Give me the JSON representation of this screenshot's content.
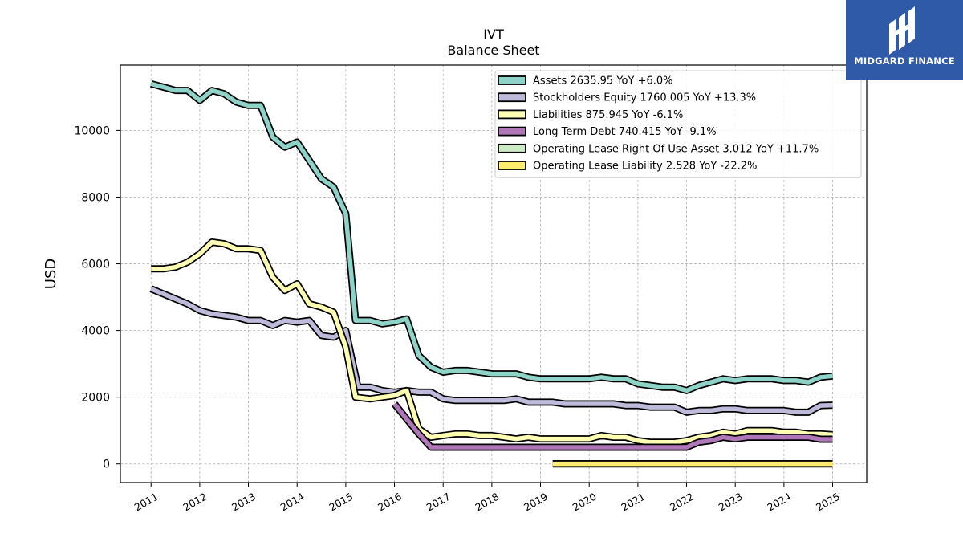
{
  "brand": {
    "name": "MIDGARD FINANCE",
    "color": "#2f5aa8"
  },
  "chart_data": {
    "type": "line",
    "title": "IVT",
    "subtitle": "Balance  Sheet",
    "xlabel": "",
    "ylabel": "USD",
    "xlim": [
      2010.37,
      2025.7
    ],
    "ylim": [
      -560,
      11960
    ],
    "xticks": [
      "2011",
      "2012",
      "2013",
      "2014",
      "2015",
      "2016",
      "2017",
      "2018",
      "2019",
      "2020",
      "2021",
      "2022",
      "2023",
      "2024",
      "2025"
    ],
    "yticks": [
      0,
      2000,
      4000,
      6000,
      8000,
      10000
    ],
    "grid": true,
    "legend_position": "top-right",
    "series": [
      {
        "name": "Assets  2635.95 YoY +6.0%",
        "color": "#8dd3c7",
        "x": [
          2011.0,
          2011.25,
          2011.5,
          2011.75,
          2012.0,
          2012.25,
          2012.5,
          2012.75,
          2013.0,
          2013.25,
          2013.5,
          2013.75,
          2014.0,
          2014.25,
          2014.5,
          2014.75,
          2015.0,
          2015.2,
          2015.5,
          2015.75,
          2016.0,
          2016.25,
          2016.5,
          2016.75,
          2017.0,
          2017.25,
          2017.5,
          2017.75,
          2018.0,
          2018.25,
          2018.5,
          2018.75,
          2019.0,
          2019.25,
          2019.5,
          2019.75,
          2020.0,
          2020.25,
          2020.5,
          2020.75,
          2021.0,
          2021.25,
          2021.5,
          2021.75,
          2022.0,
          2022.25,
          2022.5,
          2022.75,
          2023.0,
          2023.25,
          2023.5,
          2023.75,
          2024.0,
          2024.25,
          2024.5,
          2024.75,
          2025.0
        ],
        "y": [
          11400,
          11300,
          11200,
          11200,
          10900,
          11200,
          11100,
          10850,
          10750,
          10750,
          9800,
          9500,
          9650,
          9100,
          8550,
          8300,
          7500,
          4300,
          4300,
          4200,
          4250,
          4350,
          3250,
          2900,
          2750,
          2800,
          2800,
          2750,
          2700,
          2700,
          2700,
          2600,
          2550,
          2550,
          2550,
          2550,
          2550,
          2600,
          2550,
          2550,
          2400,
          2350,
          2300,
          2300,
          2200,
          2350,
          2450,
          2550,
          2500,
          2550,
          2550,
          2550,
          2500,
          2500,
          2450,
          2600,
          2636
        ]
      },
      {
        "name": "Stockholders Equity  1760.005 YoY +13.3%",
        "color": "#bebada",
        "x": [
          2011.0,
          2011.25,
          2011.5,
          2011.75,
          2012.0,
          2012.25,
          2012.5,
          2012.75,
          2013.0,
          2013.25,
          2013.5,
          2013.75,
          2014.0,
          2014.25,
          2014.5,
          2014.75,
          2015.0,
          2015.25,
          2015.5,
          2015.75,
          2016.0,
          2016.25,
          2016.5,
          2016.75,
          2017.0,
          2017.25,
          2017.5,
          2017.75,
          2018.0,
          2018.25,
          2018.5,
          2018.75,
          2019.0,
          2019.25,
          2019.5,
          2019.75,
          2020.0,
          2020.25,
          2020.5,
          2020.75,
          2021.0,
          2021.25,
          2021.5,
          2021.75,
          2022.0,
          2022.25,
          2022.5,
          2022.75,
          2023.0,
          2023.25,
          2023.5,
          2023.75,
          2024.0,
          2024.25,
          2024.5,
          2024.75,
          2025.0
        ],
        "y": [
          5250,
          5100,
          4950,
          4800,
          4600,
          4500,
          4450,
          4400,
          4300,
          4300,
          4150,
          4300,
          4250,
          4300,
          3850,
          3800,
          4000,
          2300,
          2300,
          2200,
          2150,
          2200,
          2150,
          2150,
          1950,
          1900,
          1900,
          1900,
          1900,
          1900,
          1950,
          1850,
          1850,
          1850,
          1800,
          1800,
          1800,
          1800,
          1800,
          1750,
          1750,
          1700,
          1700,
          1700,
          1550,
          1600,
          1600,
          1650,
          1650,
          1600,
          1600,
          1600,
          1600,
          1550,
          1550,
          1750,
          1760
        ]
      },
      {
        "name": "Liabilities  875.945 YoY -6.1%",
        "color": "#ffffb3",
        "x": [
          2011.0,
          2011.25,
          2011.5,
          2011.75,
          2012.0,
          2012.25,
          2012.5,
          2012.75,
          2013.0,
          2013.25,
          2013.5,
          2013.75,
          2014.0,
          2014.25,
          2014.5,
          2014.75,
          2015.0,
          2015.2,
          2015.5,
          2015.75,
          2016.0,
          2016.25,
          2016.5,
          2016.75,
          2017.0,
          2017.25,
          2017.5,
          2017.75,
          2018.0,
          2018.25,
          2018.5,
          2018.75,
          2019.0,
          2019.25,
          2019.5,
          2019.75,
          2020.0,
          2020.25,
          2020.5,
          2020.75,
          2021.0,
          2021.25,
          2021.5,
          2021.75,
          2022.0,
          2022.25,
          2022.5,
          2022.75,
          2023.0,
          2023.25,
          2023.5,
          2023.75,
          2024.0,
          2024.25,
          2024.5,
          2024.75,
          2025.0
        ],
        "y": [
          5850,
          5850,
          5900,
          6050,
          6300,
          6650,
          6600,
          6450,
          6450,
          6400,
          5600,
          5200,
          5400,
          4800,
          4700,
          4550,
          3500,
          2000,
          1950,
          2000,
          2050,
          2200,
          1050,
          800,
          850,
          900,
          900,
          850,
          850,
          800,
          750,
          800,
          750,
          750,
          750,
          750,
          750,
          850,
          800,
          800,
          700,
          650,
          650,
          650,
          700,
          800,
          850,
          950,
          900,
          1000,
          1000,
          1000,
          950,
          950,
          900,
          900,
          876
        ]
      },
      {
        "name": "Long Term Debt  740.415 YoY -9.1%",
        "color": "#b077b8",
        "x": [
          2016.0,
          2016.25,
          2016.5,
          2016.75,
          2017.0,
          2017.25,
          2017.5,
          2017.75,
          2018.0,
          2018.25,
          2018.5,
          2018.75,
          2019.0,
          2019.25,
          2019.5,
          2019.75,
          2020.0,
          2020.25,
          2020.5,
          2020.75,
          2021.0,
          2021.25,
          2021.5,
          2021.75,
          2022.0,
          2022.25,
          2022.5,
          2022.75,
          2023.0,
          2023.25,
          2023.5,
          2023.75,
          2024.0,
          2024.25,
          2024.5,
          2024.75,
          2025.0
        ],
        "y": [
          1800,
          1350,
          900,
          500,
          500,
          500,
          500,
          500,
          500,
          500,
          500,
          500,
          500,
          500,
          500,
          500,
          500,
          500,
          500,
          500,
          500,
          500,
          500,
          500,
          500,
          650,
          700,
          800,
          750,
          800,
          800,
          800,
          800,
          800,
          800,
          740,
          740
        ]
      },
      {
        "name": "Operating Lease Right Of Use Asset  3.012 YoY +11.7%",
        "color": "#ccebc5",
        "x": [
          2019.25,
          2019.5,
          2019.75,
          2020.0,
          2020.25,
          2020.5,
          2020.75,
          2021.0,
          2021.25,
          2021.5,
          2021.75,
          2022.0,
          2022.25,
          2022.5,
          2022.75,
          2023.0,
          2023.25,
          2023.5,
          2023.75,
          2024.0,
          2024.25,
          2024.5,
          2024.75,
          2025.0
        ],
        "y": [
          3,
          3,
          3,
          3,
          3,
          3,
          3,
          3,
          3,
          3,
          3,
          3,
          3,
          3,
          3,
          3,
          3,
          3,
          3,
          3,
          3,
          3,
          3,
          3
        ]
      },
      {
        "name": "Operating Lease Liability  2.528 YoY -22.2%",
        "color": "#ffed6f",
        "x": [
          2019.25,
          2019.5,
          2019.75,
          2020.0,
          2020.25,
          2020.5,
          2020.75,
          2021.0,
          2021.25,
          2021.5,
          2021.75,
          2022.0,
          2022.25,
          2022.5,
          2022.75,
          2023.0,
          2023.25,
          2023.5,
          2023.75,
          2024.0,
          2024.25,
          2024.5,
          2024.75,
          2025.0
        ],
        "y": [
          3,
          3,
          3,
          3,
          3,
          3,
          3,
          3,
          3,
          3,
          3,
          3,
          3,
          3,
          3,
          3,
          3,
          3,
          3,
          3,
          3,
          3,
          3,
          2.5
        ]
      }
    ]
  }
}
